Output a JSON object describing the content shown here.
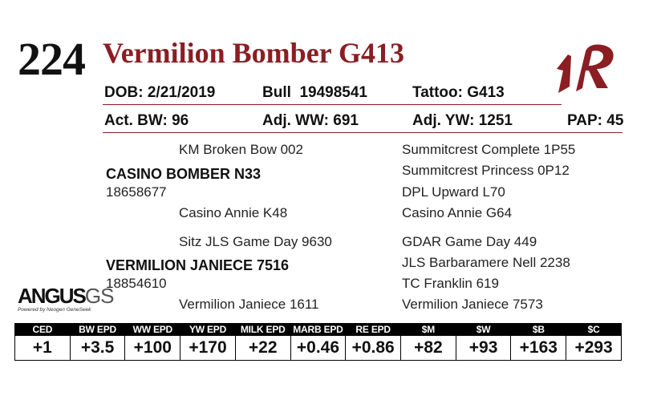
{
  "lot_number": "224",
  "animal_name": "Vermilion Bomber G413",
  "brand_mark": "1R",
  "colors": {
    "maroon": "#8b1e23",
    "black": "#000000"
  },
  "info_row1": {
    "dob_label": "DOB:",
    "dob": "2/21/2019",
    "bull_label": "Bull",
    "bull_reg": "19498541",
    "tattoo_label": "Tattoo:",
    "tattoo": "G413"
  },
  "info_row2": {
    "bw_label": "Act. BW:",
    "bw": "96",
    "ww_label": "Adj. WW:",
    "ww": "691",
    "yw_label": "Adj. YW:",
    "yw": "1251",
    "pap_label": "PAP:",
    "pap": "45"
  },
  "pedigree": {
    "sire": {
      "sire": "KM Broken Bow 002",
      "name": "CASINO BOMBER N33",
      "reg": "18658677",
      "dam": "Casino Annie K48"
    },
    "sire_right": [
      "Summitcrest Complete 1P55",
      "Summitcrest Princess 0P12",
      "DPL Upward L70",
      "Casino Annie G64"
    ],
    "dam": {
      "sire": "Sitz JLS Game Day 9630",
      "name": "VERMILION JANIECE 7516",
      "reg": "18854610",
      "dam": "Vermilion Janiece 1611"
    },
    "dam_right": [
      "GDAR Game Day 449",
      "JLS Barbaramere Nell 2238",
      "TC Franklin 619",
      "Vermilion Janiece 7573"
    ]
  },
  "angus_logo": {
    "main": "ANGUS",
    "gs": "GS",
    "sub": "Powered by Neogen GeneSeek"
  },
  "epd": {
    "headers": [
      "CED",
      "BW EPD",
      "WW EPD",
      "YW EPD",
      "MILK EPD",
      "MARB EPD",
      "RE EPD",
      "$M",
      "$W",
      "$B",
      "$C"
    ],
    "values": [
      "+1",
      "+3.5",
      "+100",
      "+170",
      "+22",
      "+0.46",
      "+0.86",
      "+82",
      "+93",
      "+163",
      "+293"
    ]
  }
}
